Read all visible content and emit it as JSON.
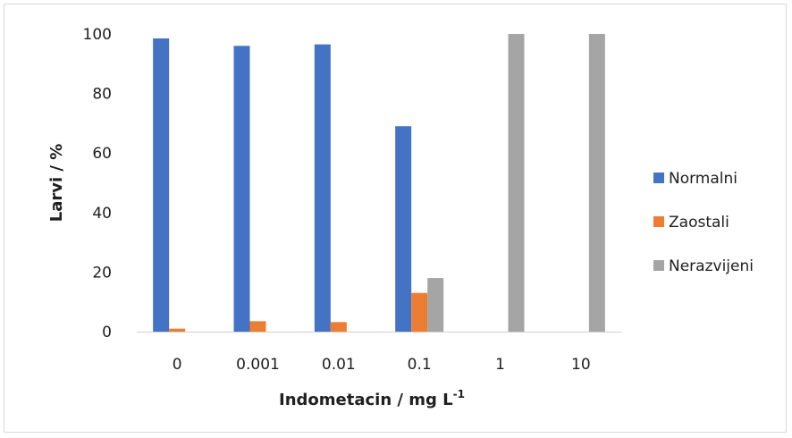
{
  "chart_data": {
    "type": "bar",
    "categories": [
      "0",
      "0.001",
      "0.01",
      "0.1",
      "1",
      "10"
    ],
    "series": [
      {
        "name": "Normalni",
        "values": [
          98.5,
          96,
          96.5,
          69,
          0,
          0
        ],
        "color": "#4472C4"
      },
      {
        "name": "Zaostali",
        "values": [
          1,
          3.5,
          3.2,
          13,
          0,
          0
        ],
        "color": "#ED7D31"
      },
      {
        "name": "Nerazvijeni",
        "values": [
          0,
          0,
          0,
          18,
          100,
          100
        ],
        "color": "#A5A5A5"
      }
    ],
    "xlabel": "Indometacin / mg L",
    "xlabel_superscript": "-1",
    "ylabel": "Larvi / %",
    "ylim": [
      0,
      100
    ],
    "yticks": [
      "0",
      "20",
      "40",
      "60",
      "80",
      "100"
    ],
    "grid": false,
    "legend": "right"
  }
}
